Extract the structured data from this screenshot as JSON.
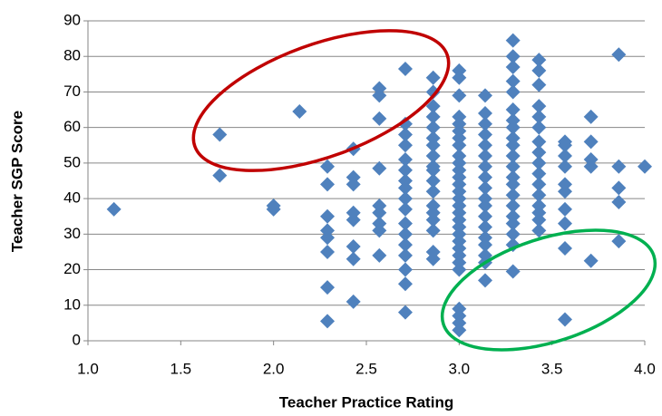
{
  "chart_data": {
    "type": "scatter",
    "xlabel": "Teacher Practice Rating",
    "ylabel": "Teacher SGP Score",
    "color": "#4f81bd",
    "grid": true,
    "xlim": [
      1,
      4
    ],
    "ylim": [
      0,
      90
    ],
    "xticks": [
      {
        "value": 1,
        "label": "1.0"
      },
      1.5,
      {
        "value": 2,
        "label": "2.0"
      },
      2.5,
      {
        "value": 3,
        "label": "3.0"
      },
      3.5,
      {
        "value": 4,
        "label": "4.0"
      }
    ],
    "yticks": [
      0,
      10,
      20,
      30,
      40,
      50,
      60,
      70,
      80,
      90
    ],
    "x": [
      1.14,
      1.71,
      1.71,
      2,
      2,
      2.14,
      2.29,
      2.29,
      2.29,
      2.29,
      2.29,
      2.29,
      2.29,
      2.29,
      2.43,
      2.43,
      2.43,
      2.43,
      2.43,
      2.43,
      2.43,
      2.43,
      2.57,
      2.57,
      2.57,
      2.57,
      2.57,
      2.57,
      2.57,
      2.57,
      2.57,
      2.71,
      2.71,
      2.71,
      2.71,
      2.71,
      2.71,
      2.71,
      2.71,
      2.71,
      2.71,
      2.71,
      2.71,
      2.71,
      2.71,
      2.71,
      2.71,
      2.71,
      2.86,
      2.86,
      2.86,
      2.86,
      2.86,
      2.86,
      2.86,
      2.86,
      2.86,
      2.86,
      2.86,
      2.86,
      2.86,
      2.86,
      2.86,
      2.86,
      2.86,
      2.86,
      3,
      3,
      3,
      3,
      3,
      3,
      3,
      3,
      3,
      3,
      3,
      3,
      3,
      3,
      3,
      3,
      3,
      3,
      3,
      3,
      3,
      3,
      3,
      3,
      3,
      3,
      3,
      3,
      3,
      3.14,
      3.14,
      3.14,
      3.14,
      3.14,
      3.14,
      3.14,
      3.14,
      3.14,
      3.14,
      3.14,
      3.14,
      3.14,
      3.14,
      3.14,
      3.14,
      3.14,
      3.14,
      3.29,
      3.29,
      3.29,
      3.29,
      3.29,
      3.29,
      3.29,
      3.29,
      3.29,
      3.29,
      3.29,
      3.29,
      3.29,
      3.29,
      3.29,
      3.29,
      3.29,
      3.29,
      3.29,
      3.29,
      3.29,
      3.43,
      3.43,
      3.43,
      3.43,
      3.43,
      3.43,
      3.43,
      3.43,
      3.43,
      3.43,
      3.43,
      3.43,
      3.43,
      3.43,
      3.43,
      3.43,
      3.57,
      3.57,
      3.57,
      3.57,
      3.57,
      3.57,
      3.57,
      3.57,
      3.57,
      3.57,
      3.71,
      3.71,
      3.71,
      3.71,
      3.71,
      3.86,
      3.86,
      3.86,
      3.86,
      3.86,
      4
    ],
    "values": [
      37,
      58,
      46.5,
      38,
      37,
      64.5,
      49,
      44,
      35,
      31,
      29,
      25,
      15,
      5.5,
      54,
      46,
      44,
      36,
      34,
      26.5,
      23,
      11,
      71,
      69,
      62.5,
      48.5,
      38,
      36,
      33,
      31,
      24,
      76.5,
      61,
      58,
      55,
      51,
      48,
      45,
      43,
      40,
      37,
      33,
      30,
      27,
      24,
      20,
      16,
      8,
      74,
      70,
      66,
      63,
      60,
      57,
      55,
      52,
      49,
      48,
      45,
      42,
      38,
      36,
      34,
      31,
      25,
      23,
      76,
      74,
      69,
      63,
      61,
      59,
      57,
      55,
      52,
      50,
      48,
      46,
      44,
      42,
      40,
      38,
      36,
      34,
      32,
      30,
      28,
      26,
      24,
      22,
      20,
      9,
      7,
      5,
      3,
      69,
      64,
      61,
      58,
      55,
      52,
      49,
      46,
      43,
      40,
      38,
      35,
      32,
      29,
      27,
      24,
      22,
      17,
      84.5,
      80,
      77,
      73,
      70,
      65,
      62,
      60,
      57,
      55,
      52,
      49,
      46,
      44,
      41,
      38,
      35,
      33,
      30,
      27,
      19.5,
      79,
      76,
      72,
      66,
      63,
      60,
      56,
      53,
      50,
      47,
      44,
      41,
      38,
      36,
      34,
      31,
      56,
      55,
      52,
      49,
      44,
      42,
      37,
      33,
      26,
      6,
      63,
      56,
      51,
      49,
      22.5,
      80.5,
      49,
      43,
      39,
      28,
      49
    ]
  }
}
